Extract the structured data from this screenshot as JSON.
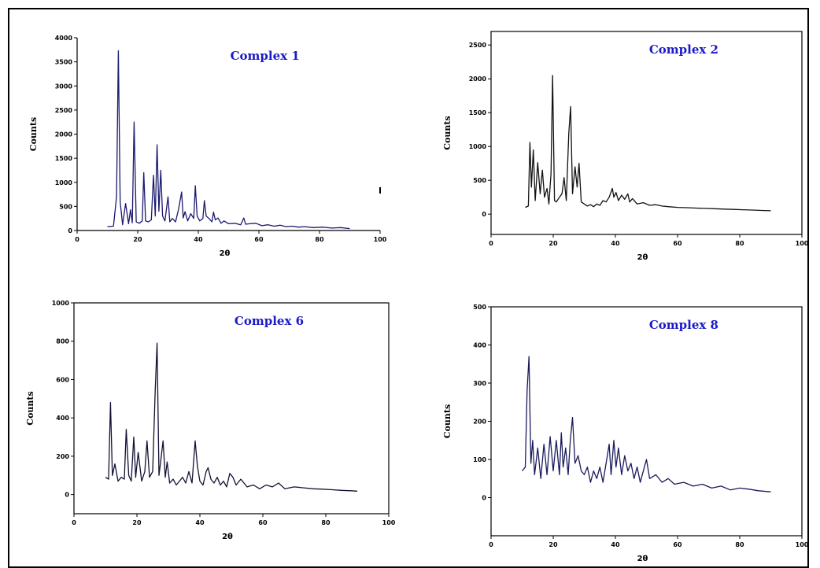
{
  "chart_data": [
    {
      "type": "line",
      "title": "Complex 1",
      "xlabel": "2θ",
      "ylabel": "Counts",
      "xlim": [
        0,
        100
      ],
      "ylim": [
        0,
        4000
      ],
      "xticks": [
        "0",
        "20",
        "40",
        "60",
        "80",
        "100"
      ],
      "yticks": [
        "0",
        "500",
        "1000",
        "1500",
        "2000",
        "2500",
        "3000",
        "3500",
        "4000"
      ],
      "ytick_values": [
        0,
        500,
        1000,
        1500,
        2000,
        2500,
        3000,
        3500,
        4000
      ],
      "line_color": "#1a1a6e",
      "series": [
        {
          "x": [
            10,
            12,
            13,
            13.6,
            14.2,
            15,
            16,
            17,
            17.6,
            18.2,
            18.8,
            19.5,
            20.5,
            21.5,
            22,
            22.6,
            23.5,
            24.5,
            25.2,
            25.8,
            26.4,
            27,
            27.6,
            28.2,
            29,
            30,
            30.6,
            31.4,
            32.5,
            33.5,
            34.5,
            35,
            35.6,
            36.5,
            37.5,
            38.5,
            39,
            39.6,
            40.5,
            41.5,
            42,
            42.6,
            43.5,
            44.5,
            45,
            45.6,
            46.5,
            47.5,
            48.5,
            50,
            52,
            54,
            55,
            55.6,
            57,
            59,
            61,
            63,
            65,
            67,
            69,
            71,
            73,
            75,
            78,
            81,
            84,
            87,
            90
          ],
          "y": [
            80,
            90,
            700,
            3730,
            600,
            120,
            560,
            140,
            430,
            160,
            2250,
            180,
            150,
            200,
            1200,
            200,
            180,
            220,
            1150,
            300,
            1780,
            400,
            1250,
            300,
            200,
            700,
            180,
            250,
            180,
            450,
            800,
            260,
            390,
            200,
            350,
            250,
            930,
            300,
            200,
            250,
            620,
            300,
            250,
            180,
            380,
            220,
            260,
            150,
            200,
            140,
            150,
            120,
            260,
            130,
            140,
            150,
            100,
            120,
            90,
            110,
            80,
            90,
            70,
            80,
            60,
            70,
            50,
            60,
            40
          ]
        }
      ]
    },
    {
      "type": "line",
      "title": "Complex 2",
      "xlabel": "2θ",
      "ylabel": "Counts",
      "xlim": [
        0,
        100
      ],
      "ylim": [
        -300,
        2700
      ],
      "xticks": [
        "0",
        "20",
        "40",
        "60",
        "80",
        "100"
      ],
      "yticks": [
        "0",
        "500",
        "1000",
        "1500",
        "2000",
        "2500"
      ],
      "ytick_values": [
        0,
        500,
        1000,
        1500,
        2000,
        2500
      ],
      "line_color": "#111111",
      "series": [
        {
          "x": [
            11,
            12,
            12.5,
            13,
            13.6,
            14.2,
            15,
            15.8,
            16.5,
            17.2,
            18,
            18.6,
            19.3,
            19.8,
            20.4,
            21,
            22,
            22.8,
            23.5,
            24.2,
            25,
            25.6,
            26.2,
            27,
            27.7,
            28.3,
            29,
            30,
            31,
            32,
            33,
            34,
            35,
            36,
            37,
            38,
            39,
            39.5,
            40.2,
            41,
            42,
            43,
            44,
            44.6,
            45.5,
            47,
            49,
            51,
            53,
            55,
            57,
            60,
            63,
            66,
            69,
            72,
            75,
            78,
            81,
            84,
            87,
            90
          ],
          "y": [
            100,
            120,
            1060,
            400,
            950,
            200,
            760,
            300,
            650,
            250,
            380,
            150,
            600,
            2050,
            200,
            180,
            250,
            300,
            540,
            200,
            1200,
            1590,
            300,
            700,
            400,
            750,
            180,
            150,
            120,
            140,
            110,
            150,
            130,
            200,
            180,
            250,
            380,
            250,
            320,
            200,
            280,
            220,
            300,
            180,
            230,
            150,
            170,
            130,
            140,
            120,
            110,
            100,
            95,
            90,
            85,
            80,
            75,
            70,
            65,
            60,
            55,
            50
          ]
        }
      ]
    },
    {
      "type": "line",
      "title": "Complex 6",
      "xlabel": "2θ",
      "ylabel": "Counts",
      "xlim": [
        0,
        100
      ],
      "ylim": [
        -100,
        1000
      ],
      "xticks": [
        "0",
        "20",
        "40",
        "60",
        "80",
        "100"
      ],
      "yticks": [
        "0",
        "200",
        "400",
        "600",
        "800",
        "1000"
      ],
      "ytick_values": [
        0,
        200,
        400,
        600,
        800,
        1000
      ],
      "line_color": "#111133",
      "series": [
        {
          "x": [
            10,
            11,
            11.6,
            12.2,
            13,
            14,
            15,
            16,
            16.6,
            17.4,
            18.2,
            19,
            19.6,
            20.4,
            21.5,
            22.5,
            23.2,
            24,
            25,
            25.8,
            26.4,
            27,
            27.6,
            28.3,
            29,
            29.6,
            30.4,
            31.5,
            32.5,
            33.5,
            34.5,
            35.5,
            36.5,
            37.5,
            38.5,
            39.2,
            40,
            41,
            42,
            42.6,
            43.5,
            44.5,
            45.5,
            46.5,
            47.5,
            48.5,
            49.5,
            50.5,
            51.5,
            53,
            55,
            57,
            59,
            61,
            63,
            65,
            67,
            70,
            73,
            76,
            79,
            82,
            85,
            88,
            90
          ],
          "y": [
            90,
            80,
            480,
            100,
            160,
            70,
            90,
            80,
            340,
            100,
            70,
            300,
            90,
            220,
            70,
            120,
            280,
            90,
            120,
            540,
            790,
            100,
            180,
            280,
            90,
            170,
            60,
            80,
            50,
            70,
            90,
            60,
            120,
            60,
            280,
            150,
            70,
            50,
            120,
            140,
            80,
            60,
            90,
            50,
            70,
            40,
            110,
            90,
            50,
            80,
            40,
            50,
            30,
            50,
            40,
            60,
            30,
            40,
            35,
            30,
            28,
            25,
            22,
            20,
            18
          ]
        }
      ]
    },
    {
      "type": "line",
      "title": "Complex 8",
      "xlabel": "2θ",
      "ylabel": "Counts",
      "xlim": [
        0,
        100
      ],
      "ylim": [
        -100,
        500
      ],
      "xticks": [
        "0",
        "20",
        "40",
        "60",
        "80",
        "100"
      ],
      "yticks": [
        "0",
        "100",
        "200",
        "300",
        "400",
        "500"
      ],
      "ytick_values": [
        0,
        100,
        200,
        300,
        400,
        500
      ],
      "line_color": "#1a1a5e",
      "series": [
        {
          "x": [
            10,
            11,
            11.6,
            12.2,
            12.8,
            13.4,
            14,
            15,
            16,
            17,
            18,
            19,
            20,
            21,
            22,
            22.6,
            23.2,
            24,
            24.8,
            25.5,
            26.2,
            27,
            28,
            29,
            30,
            31,
            32,
            33,
            34,
            35,
            36,
            37,
            38,
            38.6,
            39.5,
            40.2,
            41,
            42,
            43,
            44,
            45,
            46,
            47,
            48,
            49,
            50,
            51,
            53,
            55,
            57,
            59,
            62,
            65,
            68,
            71,
            74,
            77,
            80,
            83,
            86,
            90
          ],
          "y": [
            70,
            80,
            280,
            370,
            90,
            150,
            60,
            130,
            50,
            140,
            60,
            160,
            70,
            150,
            60,
            170,
            80,
            130,
            60,
            150,
            210,
            90,
            110,
            70,
            60,
            80,
            40,
            70,
            50,
            80,
            40,
            90,
            140,
            60,
            150,
            80,
            130,
            60,
            110,
            70,
            90,
            50,
            80,
            40,
            70,
            100,
            50,
            60,
            40,
            50,
            35,
            40,
            30,
            35,
            25,
            30,
            20,
            25,
            22,
            18,
            15
          ]
        }
      ]
    }
  ]
}
